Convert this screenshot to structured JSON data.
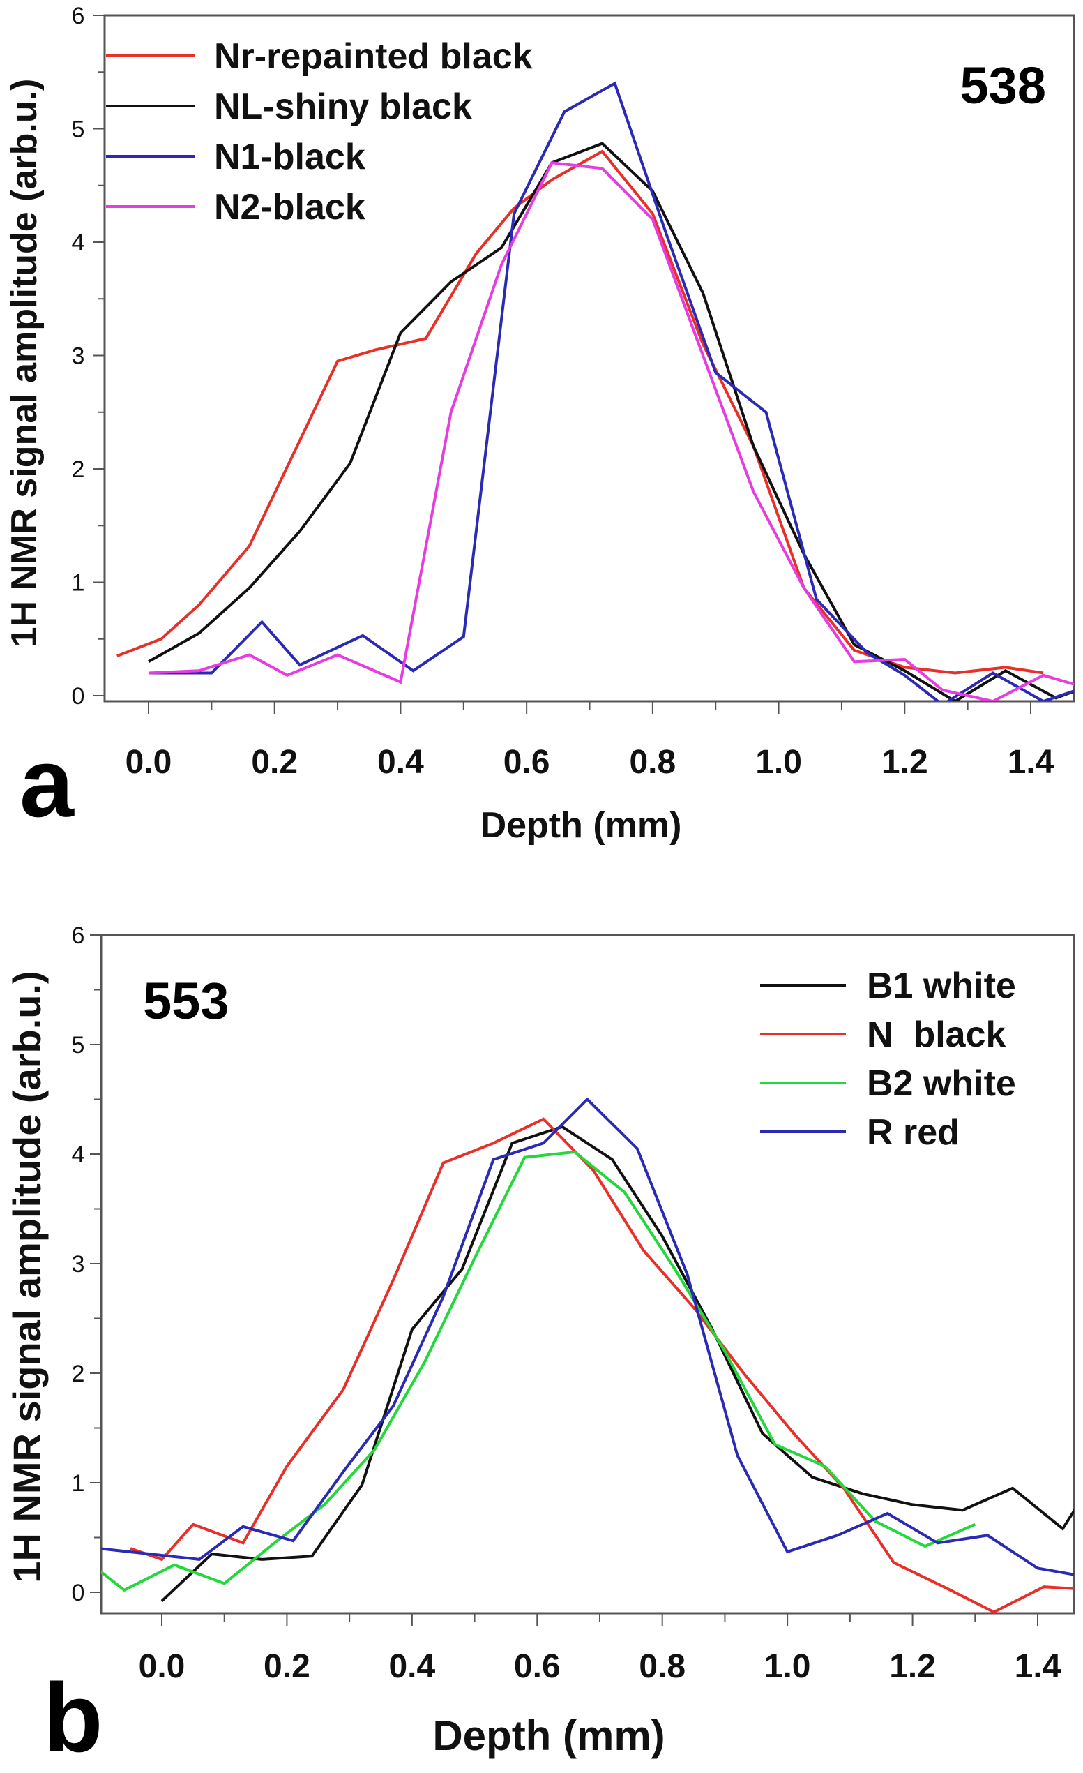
{
  "chart_data": [
    {
      "type": "line",
      "panel_label": "a",
      "annotation": "538",
      "title": "",
      "xlabel": "Depth (mm)",
      "ylabel": "1H NMR signal amplitude (arb.u.)",
      "xlim": [
        -0.1,
        1.5
      ],
      "ylim": [
        0,
        6
      ],
      "xticks": [
        "0.0",
        "0.2",
        "0.4",
        "0.6",
        "0.8",
        "1.0",
        "1.2",
        "1.4"
      ],
      "yticks": [
        "0",
        "1",
        "2",
        "3",
        "4",
        "5",
        "6"
      ],
      "legend_position": "top-left",
      "series": [
        {
          "name": "Nr-repainted black",
          "color": "#e8302a",
          "x": [
            -0.05,
            0.02,
            0.08,
            0.16,
            0.24,
            0.3,
            0.36,
            0.44,
            0.52,
            0.58,
            0.64,
            0.72,
            0.8,
            0.88,
            0.96,
            1.04,
            1.12,
            1.2,
            1.28,
            1.36,
            1.42
          ],
          "y": [
            0.35,
            0.5,
            0.8,
            1.32,
            2.25,
            2.95,
            3.05,
            3.15,
            3.9,
            4.3,
            4.55,
            4.8,
            4.25,
            3.1,
            2.2,
            0.95,
            0.4,
            0.25,
            0.2,
            0.25,
            0.2
          ]
        },
        {
          "name": "NL-shiny black",
          "color": "#111111",
          "x": [
            0.0,
            0.08,
            0.16,
            0.24,
            0.32,
            0.4,
            0.48,
            0.56,
            0.64,
            0.72,
            0.8,
            0.88,
            0.96,
            1.04,
            1.12,
            1.2,
            1.28,
            1.36,
            1.44,
            1.5
          ],
          "y": [
            0.3,
            0.55,
            0.95,
            1.45,
            2.05,
            3.2,
            3.65,
            3.95,
            4.7,
            4.87,
            4.45,
            3.55,
            2.2,
            1.25,
            0.45,
            0.22,
            -0.05,
            0.22,
            -0.02,
            0.1
          ]
        },
        {
          "name": "N1-black",
          "color": "#2a2ab5",
          "x": [
            0.0,
            0.1,
            0.18,
            0.24,
            0.34,
            0.42,
            0.5,
            0.58,
            0.66,
            0.74,
            0.82,
            0.9,
            0.98,
            1.06,
            1.14,
            1.2,
            1.26,
            1.34,
            1.42,
            1.5
          ],
          "y": [
            0.2,
            0.2,
            0.65,
            0.27,
            0.53,
            0.22,
            0.52,
            4.25,
            5.15,
            5.4,
            4.1,
            2.85,
            2.5,
            0.85,
            0.38,
            0.18,
            -0.08,
            0.2,
            -0.05,
            0.1
          ]
        },
        {
          "name": "N2-black",
          "color": "#e63ce0",
          "x": [
            0.0,
            0.08,
            0.16,
            0.22,
            0.3,
            0.4,
            0.48,
            0.56,
            0.64,
            0.72,
            0.8,
            0.88,
            0.96,
            1.04,
            1.12,
            1.2,
            1.26,
            1.34,
            1.42,
            1.5
          ],
          "y": [
            0.2,
            0.22,
            0.36,
            0.18,
            0.36,
            0.12,
            2.5,
            3.8,
            4.7,
            4.65,
            4.2,
            3.0,
            1.8,
            0.95,
            0.3,
            0.32,
            0.05,
            -0.05,
            0.18,
            0.05
          ]
        }
      ]
    },
    {
      "type": "line",
      "panel_label": "b",
      "annotation": "553",
      "title": "",
      "xlabel": "Depth (mm)",
      "ylabel": "1H NMR signal amplitude (arb.u.)",
      "xlim": [
        -0.1,
        1.5
      ],
      "ylim": [
        -0.2,
        6
      ],
      "xticks": [
        "0.0",
        "0.2",
        "0.4",
        "0.6",
        "0.8",
        "1.0",
        "1.2",
        "1.4"
      ],
      "yticks": [
        "0",
        "1",
        "2",
        "3",
        "4",
        "5",
        "6"
      ],
      "legend_position": "top-right",
      "series": [
        {
          "name": "B1 white",
          "color": "#111111",
          "x": [
            0.0,
            0.08,
            0.16,
            0.24,
            0.32,
            0.4,
            0.48,
            0.56,
            0.64,
            0.72,
            0.8,
            0.88,
            0.96,
            1.04,
            1.12,
            1.2,
            1.28,
            1.36,
            1.44,
            1.5
          ],
          "y": [
            -0.08,
            0.35,
            0.3,
            0.33,
            0.98,
            2.4,
            2.95,
            4.1,
            4.25,
            3.95,
            3.25,
            2.4,
            1.45,
            1.05,
            0.9,
            0.8,
            0.75,
            0.95,
            0.58,
            1.12
          ]
        },
        {
          "name": "N  black",
          "color": "#e8302a",
          "x": [
            -0.05,
            0.0,
            0.05,
            0.13,
            0.2,
            0.29,
            0.37,
            0.45,
            0.53,
            0.61,
            0.69,
            0.77,
            0.85,
            0.93,
            1.01,
            1.09,
            1.17,
            1.25,
            1.33,
            1.41,
            1.5
          ],
          "y": [
            0.4,
            0.3,
            0.62,
            0.45,
            1.15,
            1.85,
            2.85,
            3.92,
            4.1,
            4.32,
            3.85,
            3.12,
            2.6,
            2.0,
            1.45,
            0.95,
            0.27,
            0.05,
            -0.18,
            0.05,
            0.02
          ]
        },
        {
          "name": "B2 white",
          "color": "#22d83a",
          "x": [
            -0.1,
            -0.06,
            0.02,
            0.1,
            0.18,
            0.26,
            0.34,
            0.42,
            0.5,
            0.58,
            0.66,
            0.74,
            0.82,
            0.9,
            0.98,
            1.06,
            1.14,
            1.22,
            1.3
          ],
          "y": [
            0.2,
            0.02,
            0.25,
            0.08,
            0.45,
            0.8,
            1.3,
            2.1,
            3.05,
            3.97,
            4.02,
            3.65,
            2.95,
            2.2,
            1.35,
            1.15,
            0.65,
            0.42,
            0.62
          ]
        },
        {
          "name": "R red",
          "color": "#2a2ab5",
          "x": [
            -0.1,
            0.06,
            0.13,
            0.21,
            0.29,
            0.37,
            0.45,
            0.53,
            0.61,
            0.68,
            0.76,
            0.84,
            0.92,
            1.0,
            1.08,
            1.16,
            1.24,
            1.32,
            1.4,
            1.5
          ],
          "y": [
            0.4,
            0.3,
            0.6,
            0.47,
            1.1,
            1.7,
            2.7,
            3.95,
            4.1,
            4.5,
            4.05,
            2.9,
            1.25,
            0.37,
            0.52,
            0.72,
            0.45,
            0.52,
            0.22,
            0.12
          ]
        }
      ]
    }
  ]
}
